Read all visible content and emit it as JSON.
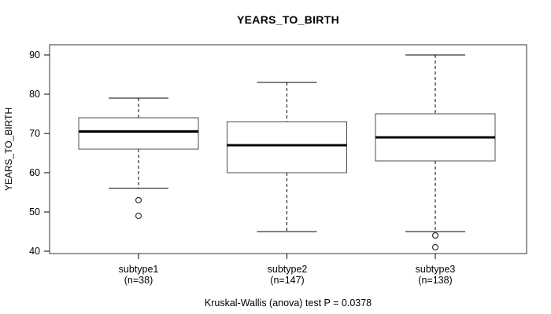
{
  "title": "YEARS_TO_BIRTH",
  "caption": "Kruskal-Wallis (anova) test P = 0.0378",
  "chart_data": {
    "type": "boxplot",
    "title": "YEARS_TO_BIRTH",
    "xlabel": "",
    "ylabel": "YEARS_TO_BIRTH",
    "yticks": [
      40,
      50,
      60,
      70,
      80,
      90
    ],
    "ylim": [
      39.4,
      92.6
    ],
    "grid": false,
    "legend": null,
    "groups": [
      {
        "label": "subtype1",
        "sublabel": "(n=38)",
        "n": 38,
        "whisker_low": 56,
        "q1": 66,
        "median": 70.5,
        "q3": 74,
        "whisker_high": 79,
        "outliers": [
          53,
          49
        ]
      },
      {
        "label": "subtype2",
        "sublabel": "(n=147)",
        "n": 147,
        "whisker_low": 45,
        "q1": 60,
        "median": 67,
        "q3": 73,
        "whisker_high": 83,
        "outliers": []
      },
      {
        "label": "subtype3",
        "sublabel": "(n=138)",
        "n": 138,
        "whisker_low": 45,
        "q1": 63,
        "median": 69,
        "q3": 75,
        "whisker_high": 90,
        "outliers": [
          44,
          41
        ]
      }
    ],
    "annotation": "Kruskal-Wallis (anova) test P = 0.0378",
    "colors": {
      "line": "#000000",
      "box_border": "#4d4d4d",
      "plot_border": "#333333",
      "background": "#ffffff"
    }
  }
}
